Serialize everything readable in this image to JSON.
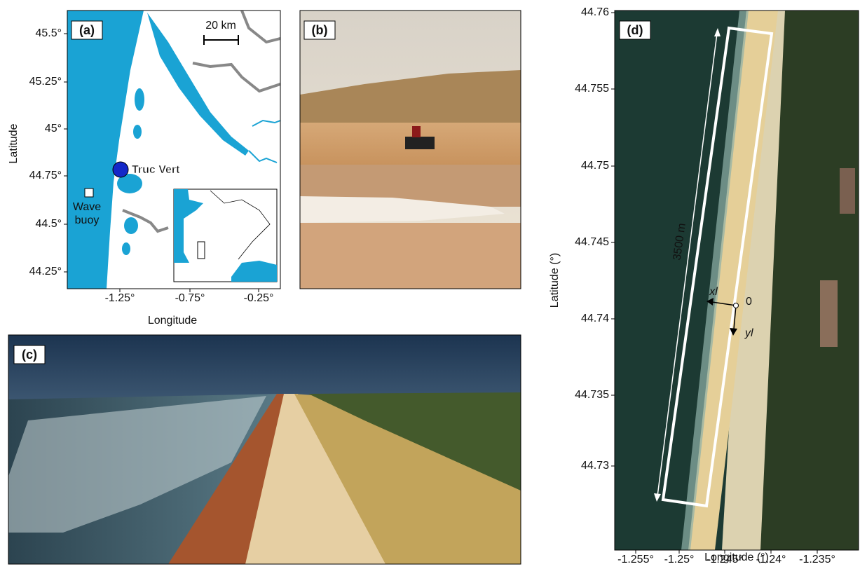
{
  "panels": {
    "a": {
      "label": "(a)",
      "scale": "20 km",
      "site": "Truc Vert",
      "buoy": [
        "Wave",
        "buoy"
      ],
      "yticks": [
        "45.5°",
        "45.25°",
        "45°",
        "44.75°",
        "44.5°",
        "44.25°"
      ],
      "xticks": [
        "-1.25°",
        "-0.75°",
        "-0.25°"
      ],
      "xlabel": "Longitude",
      "ylabel": "Latitude"
    },
    "b": {
      "label": "(b)"
    },
    "c": {
      "label": "(c)"
    },
    "d": {
      "label": "(d)",
      "length": "3500 m",
      "xl": "xl",
      "yl": "yl",
      "origin": "0",
      "yticks": [
        "44.76",
        "44.755",
        "44.75",
        "44.745",
        "44.74",
        "44.735",
        "44.73"
      ],
      "xticks": [
        "-1.255°",
        "-1.25°",
        "-1.245°",
        "-1.24°",
        "-1.235°"
      ],
      "xlabel": "Longitude (°)",
      "ylabel": "Latitude (°)"
    }
  }
}
